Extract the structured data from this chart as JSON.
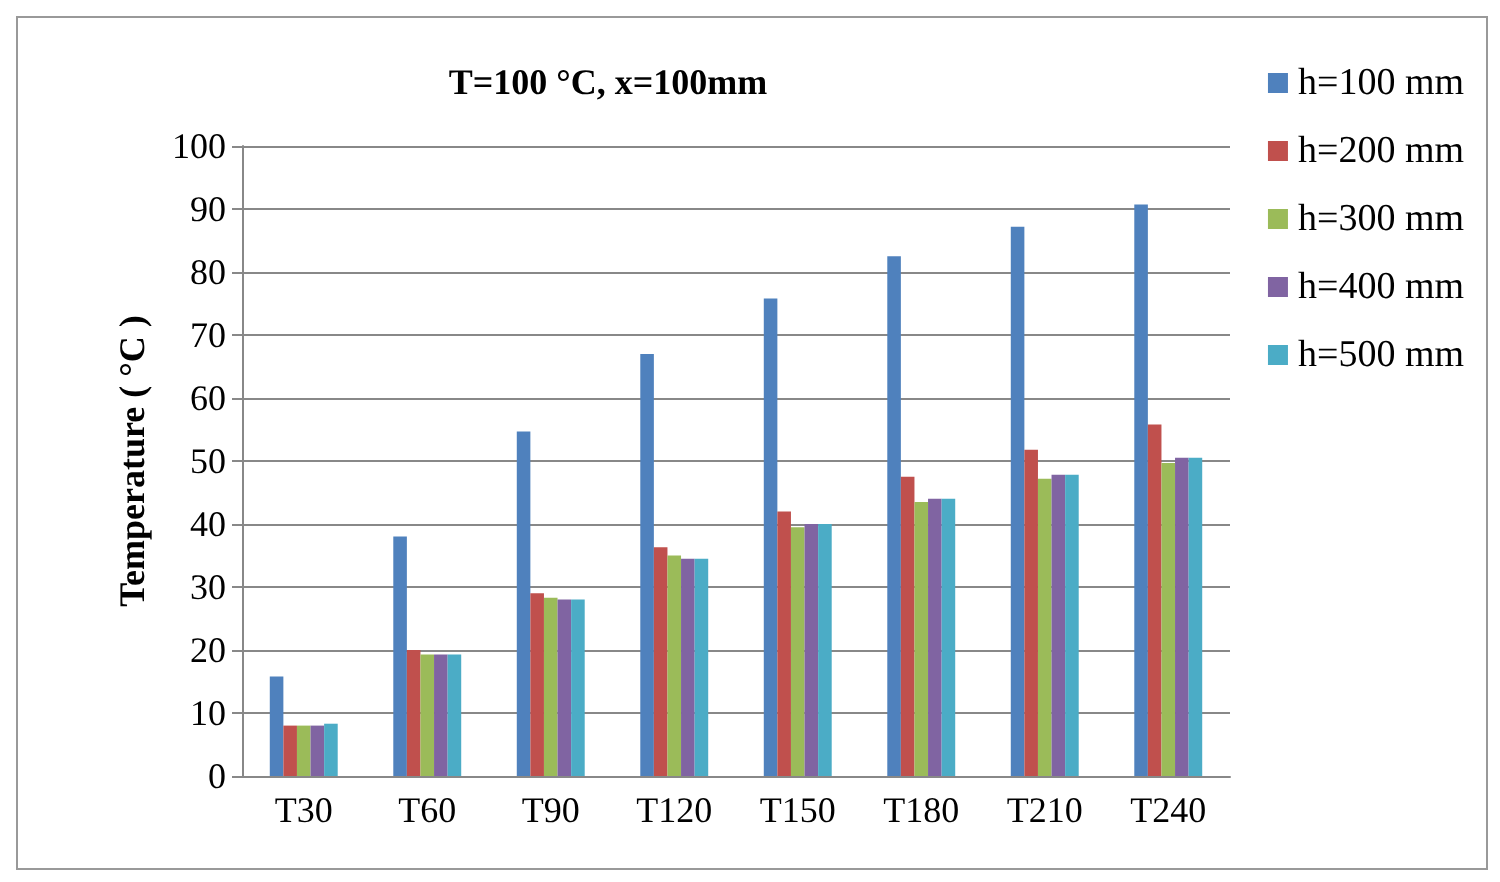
{
  "chart_data": {
    "type": "bar",
    "title": "T=100 °C, x=100mm",
    "ylabel": "Temperature ( °C )",
    "categories": [
      "T30",
      "T60",
      "T90",
      "T120",
      "T150",
      "T180",
      "T210",
      "T240"
    ],
    "series": [
      {
        "name": "h=100 mm",
        "color": "#4f81bd",
        "values": [
          15.8,
          38,
          54.7,
          67,
          75.8,
          82.5,
          87.2,
          90.7
        ]
      },
      {
        "name": "h=200 mm",
        "color": "#c0504d",
        "values": [
          8,
          20,
          29,
          36.3,
          42,
          47.5,
          51.8,
          55.8
        ]
      },
      {
        "name": "h=300 mm",
        "color": "#9bbb59",
        "values": [
          8,
          19.3,
          28.3,
          35,
          39.5,
          43.5,
          47.2,
          49.7
        ]
      },
      {
        "name": "h=400 mm",
        "color": "#8064a2",
        "values": [
          8,
          19.3,
          28,
          34.5,
          40,
          44,
          47.8,
          50.5
        ]
      },
      {
        "name": "h=500 mm",
        "color": "#4bacc6",
        "values": [
          8.3,
          19.3,
          28,
          34.5,
          40,
          44,
          47.8,
          50.5
        ]
      }
    ],
    "ylim": [
      0,
      100
    ],
    "yticks": [
      0,
      10,
      20,
      30,
      40,
      50,
      60,
      70,
      80,
      90,
      100
    ],
    "grid": "y",
    "legend": "right"
  }
}
